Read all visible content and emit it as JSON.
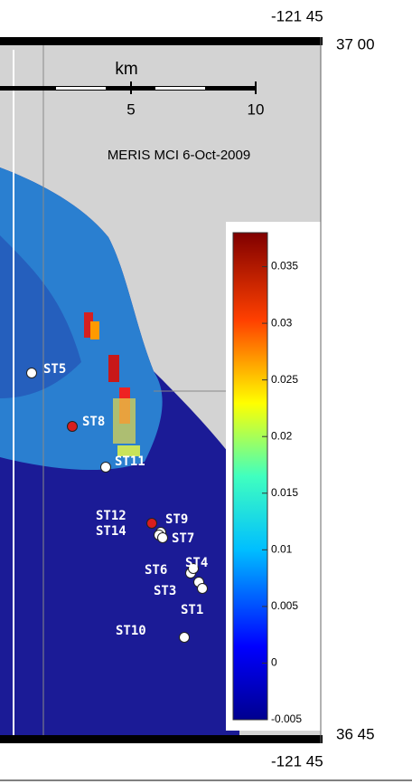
{
  "map": {
    "title": "MERIS MCI 6-Oct-2009",
    "lon_labels": [
      "-121 45",
      "-121 45"
    ],
    "lat_labels": [
      "37 00",
      "36 45"
    ],
    "scale": {
      "unit": "km",
      "ticks": [
        5,
        10
      ]
    },
    "colorbar": {
      "lim": [
        -0.005,
        0.038
      ],
      "ticks": [
        0.035,
        0.03,
        0.025,
        0.02,
        0.015,
        0.01,
        0.005,
        0,
        -0.005
      ]
    },
    "stations": [
      {
        "name": "ST5",
        "color": "#ffffff"
      },
      {
        "name": "ST8",
        "color": "#d81e1e"
      },
      {
        "name": "ST11",
        "color": "#ffffff"
      },
      {
        "name": "ST12",
        "color": "#d81e1e"
      },
      {
        "name": "ST9",
        "color": "#ffffff"
      },
      {
        "name": "ST14",
        "color": "#ffffff"
      },
      {
        "name": "ST7",
        "color": "#ffffff"
      },
      {
        "name": "ST6",
        "color": "#ffffff"
      },
      {
        "name": "ST4",
        "color": "#ffffff"
      },
      {
        "name": "ST3",
        "color": "#ffffff"
      },
      {
        "name": "ST1",
        "color": "#ffffff"
      },
      {
        "name": "ST10",
        "color": "#ffffff"
      }
    ]
  }
}
